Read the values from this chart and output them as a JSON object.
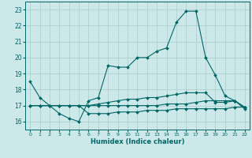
{
  "title": "",
  "xlabel": "Humidex (Indice chaleur)",
  "xlim": [
    -0.5,
    22.5
  ],
  "ylim": [
    15.5,
    23.5
  ],
  "yticks": [
    16,
    17,
    18,
    19,
    20,
    21,
    22,
    23
  ],
  "xticks": [
    0,
    1,
    2,
    3,
    4,
    5,
    6,
    7,
    8,
    9,
    10,
    11,
    12,
    13,
    14,
    15,
    16,
    17,
    18,
    19,
    20,
    21,
    22
  ],
  "bg_color": "#cce8e8",
  "line_color": "#006666",
  "grid_color": "#aacccc",
  "series": [
    {
      "x": [
        0,
        1,
        2,
        3,
        4,
        5,
        6,
        7,
        8,
        9,
        10,
        11,
        12,
        13,
        14,
        15,
        16,
        17,
        18,
        19,
        20,
        21,
        22
      ],
      "y": [
        18.5,
        17.5,
        17.0,
        16.5,
        16.2,
        16.0,
        17.3,
        17.5,
        19.5,
        19.4,
        19.4,
        20.0,
        20.0,
        20.4,
        20.6,
        22.2,
        22.9,
        22.9,
        20.0,
        18.9,
        17.6,
        17.3,
        16.8
      ]
    },
    {
      "x": [
        0,
        1,
        2,
        3,
        4,
        5,
        6,
        7,
        8,
        9,
        10,
        11,
        12,
        13,
        14,
        15,
        16,
        17,
        18,
        19,
        20,
        21,
        22
      ],
      "y": [
        17.0,
        17.0,
        17.0,
        17.0,
        17.0,
        17.0,
        17.0,
        17.1,
        17.2,
        17.3,
        17.4,
        17.4,
        17.5,
        17.5,
        17.6,
        17.7,
        17.8,
        17.8,
        17.8,
        17.2,
        17.2,
        17.3,
        16.9
      ]
    },
    {
      "x": [
        0,
        1,
        2,
        3,
        4,
        5,
        6,
        7,
        8,
        9,
        10,
        11,
        12,
        13,
        14,
        15,
        16,
        17,
        18,
        19,
        20,
        21,
        22
      ],
      "y": [
        17.0,
        17.0,
        17.0,
        17.0,
        17.0,
        17.0,
        17.0,
        17.0,
        17.0,
        17.0,
        17.0,
        17.0,
        17.0,
        17.0,
        17.1,
        17.1,
        17.1,
        17.2,
        17.3,
        17.3,
        17.3,
        17.3,
        16.9
      ]
    },
    {
      "x": [
        0,
        1,
        2,
        3,
        4,
        5,
        6,
        7,
        8,
        9,
        10,
        11,
        12,
        13,
        14,
        15,
        16,
        17,
        18,
        19,
        20,
        21,
        22
      ],
      "y": [
        17.0,
        17.0,
        17.0,
        17.0,
        17.0,
        17.0,
        16.5,
        16.5,
        16.5,
        16.6,
        16.6,
        16.6,
        16.7,
        16.7,
        16.7,
        16.8,
        16.8,
        16.8,
        16.8,
        16.8,
        16.8,
        16.9,
        16.9
      ]
    }
  ]
}
